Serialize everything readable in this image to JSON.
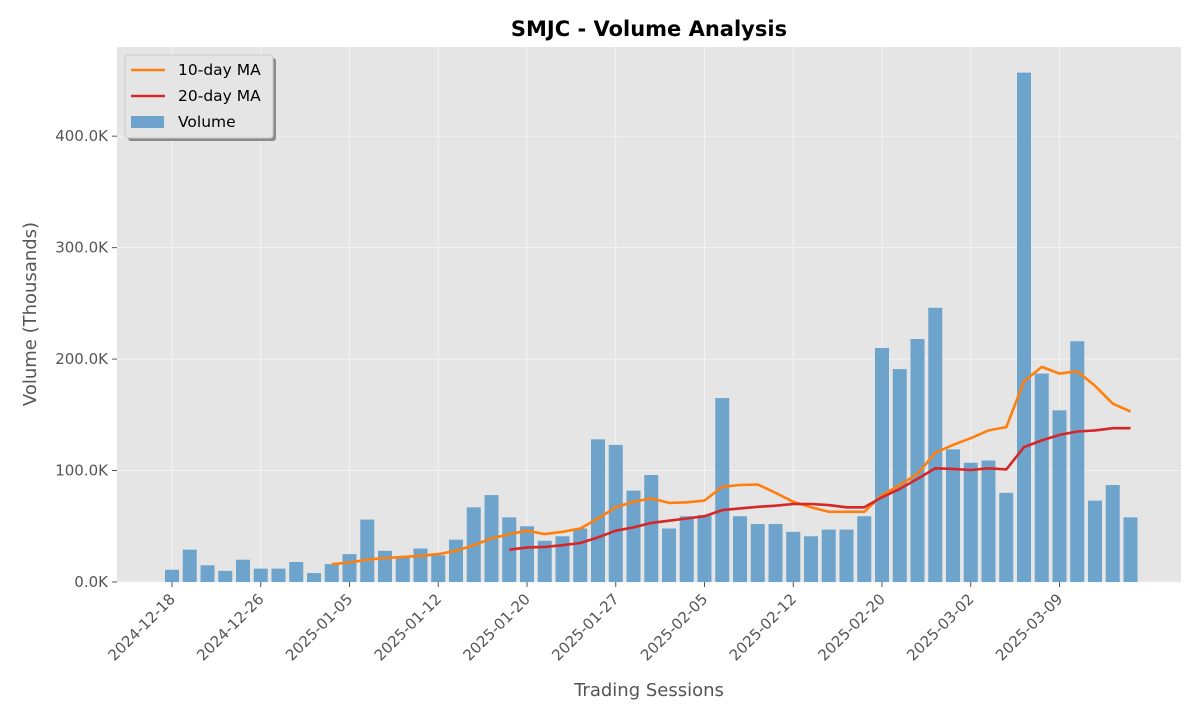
{
  "chart_data": {
    "type": "bar",
    "title": "SMJC - Volume Analysis",
    "xlabel": "Trading Sessions",
    "ylabel": "Volume (Thousands)",
    "ylim": [
      0,
      480000
    ],
    "y_ticks": [
      0,
      100000,
      200000,
      300000,
      400000
    ],
    "y_tick_labels": [
      "0.0K",
      "100.0K",
      "200.0K",
      "300.0K",
      "400.0K"
    ],
    "x_tick_labels": [
      "2024-12-18",
      "2024-12-26",
      "2025-01-05",
      "2025-01-12",
      "2025-01-20",
      "2025-01-27",
      "2025-02-05",
      "2025-02-12",
      "2025-02-20",
      "2025-03-02",
      "2025-03-09"
    ],
    "x_tick_session_index": [
      0,
      5,
      10,
      15,
      20,
      25,
      30,
      35,
      40,
      45,
      50
    ],
    "grid": true,
    "legend_position": "upper-left",
    "background": "#e5e5e5",
    "series": [
      {
        "name": "Volume",
        "kind": "bar",
        "color": "#6ea3cb",
        "values": [
          11000,
          29000,
          15000,
          10000,
          20000,
          12000,
          12000,
          18000,
          8000,
          16000,
          25000,
          56000,
          28000,
          23000,
          30000,
          24000,
          38000,
          67000,
          78000,
          58000,
          50000,
          37000,
          41000,
          48000,
          128000,
          123000,
          82000,
          96000,
          48000,
          59000,
          60000,
          165000,
          59000,
          52000,
          52000,
          45000,
          41000,
          47000,
          47000,
          59000,
          210000,
          191000,
          218000,
          246000,
          119000,
          107000,
          109000,
          80000,
          457000,
          187000,
          154000,
          216000,
          73000,
          87000,
          58000
        ]
      },
      {
        "name": "10-day MA",
        "kind": "line",
        "color": "#ff7f0e",
        "values": [
          null,
          null,
          null,
          null,
          null,
          null,
          null,
          null,
          null,
          16000,
          17500,
          20000,
          21500,
          22500,
          23500,
          25000,
          28000,
          33000,
          39000,
          43000,
          46000,
          43000,
          45000,
          48000,
          57000,
          67000,
          72000,
          75000,
          71000,
          71500,
          73000,
          85500,
          87000,
          87500,
          80000,
          72000,
          67000,
          63000,
          63000,
          63000,
          78000,
          87000,
          97000,
          116000,
          123000,
          129000,
          136000,
          139000,
          180000,
          193000,
          187000,
          189000,
          176000,
          160000,
          153000
        ]
      },
      {
        "name": "20-day MA",
        "kind": "line",
        "color": "#d62728",
        "values": [
          null,
          null,
          null,
          null,
          null,
          null,
          null,
          null,
          null,
          null,
          null,
          null,
          null,
          null,
          null,
          null,
          null,
          null,
          null,
          29000,
          31000,
          31500,
          33000,
          35000,
          40000,
          46000,
          49000,
          53000,
          55000,
          57000,
          59000,
          64500,
          66000,
          67500,
          68500,
          70000,
          70000,
          69000,
          67000,
          67000,
          76000,
          83500,
          92500,
          102000,
          101500,
          100500,
          102000,
          101000,
          121000,
          127000,
          132000,
          135000,
          136000,
          138000,
          138000
        ]
      }
    ]
  }
}
